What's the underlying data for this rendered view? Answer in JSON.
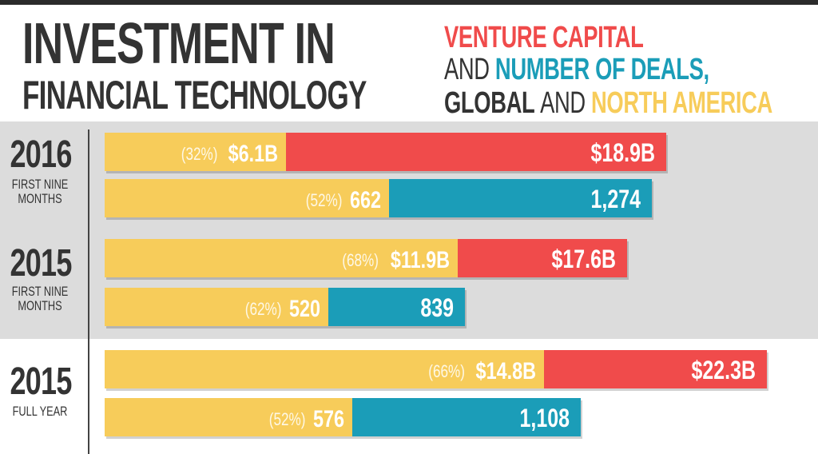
{
  "header": {
    "title_line1": "INVESTMENT IN",
    "title_line2": "FINANCIAL TECHNOLOGY",
    "subtitle": {
      "line1": "VENTURE CAPITAL",
      "line2_and": "AND",
      "line2_rest": "NUMBER OF DEALS,",
      "line3_global": "GLOBAL",
      "line3_and": "AND",
      "line3_na": "NORTH AMERICA"
    }
  },
  "colors": {
    "red": "#f04b4b",
    "teal": "#1b9db8",
    "yellow": "#f7cc5a",
    "dark": "#333333",
    "gray_band": "#dcdcdc"
  },
  "groups": [
    {
      "year": "2016",
      "period_line1": "FIRST NINE",
      "period_line2": "MONTHS"
    },
    {
      "year": "2015",
      "period_line1": "FIRST NINE",
      "period_line2": "MONTHS"
    },
    {
      "year": "2015",
      "period_line1": "FULL YEAR",
      "period_line2": ""
    }
  ],
  "chart_data": {
    "type": "bar",
    "orientation": "horizontal",
    "stacked_overlay": true,
    "title": "INVESTMENT IN FINANCIAL TECHNOLOGY",
    "subtitle": "VENTURE CAPITAL AND NUMBER OF DEALS, GLOBAL AND NORTH AMERICA",
    "categories": [
      "2016 FIRST NINE MONTHS",
      "2015 FIRST NINE MONTHS",
      "2015 FULL YEAR"
    ],
    "series": [
      {
        "name": "Venture capital",
        "unit": "$B",
        "global": [
          18.9,
          17.6,
          22.3
        ],
        "north_america": [
          6.1,
          11.9,
          14.8
        ],
        "global_labels": [
          "$18.9B",
          "$17.6B",
          "$22.3B"
        ],
        "na_labels": [
          "$6.1B",
          "$11.9B",
          "$14.8B"
        ],
        "na_share_labels": [
          "(32%)",
          "(68%)",
          "(66%)"
        ],
        "max": 22.3
      },
      {
        "name": "Number of deals",
        "unit": "deals",
        "global": [
          1274,
          839,
          1108
        ],
        "north_america": [
          662,
          520,
          576
        ],
        "global_labels": [
          "1,274",
          "839",
          "1,108"
        ],
        "na_labels": [
          "662",
          "520",
          "576"
        ],
        "na_share_labels": [
          "(52%)",
          "(62%)",
          "(52%)"
        ],
        "max": 1400
      }
    ]
  }
}
